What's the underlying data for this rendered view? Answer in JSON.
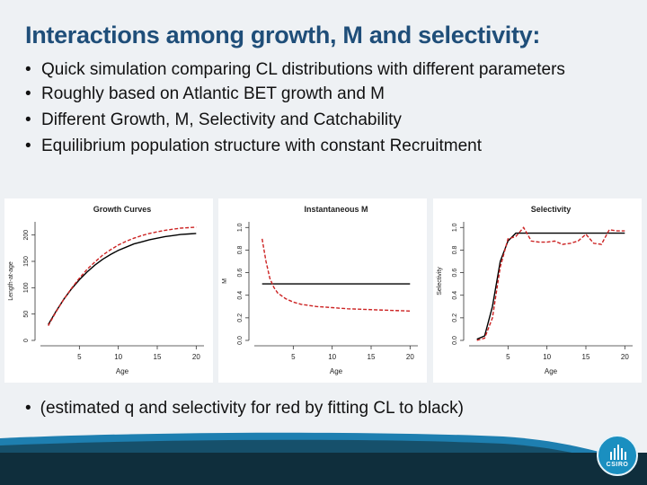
{
  "slide": {
    "title": "Interactions among growth, M and selectivity:",
    "bullets": [
      "Quick simulation comparing CL distributions with different parameters",
      "Roughly based on Atlantic BET growth and M",
      "Different Growth, M, Selectivity and Catchability",
      "Equilibrium population structure with constant Recruitment"
    ],
    "footer_bullet": "(estimated q and selectivity for red by fitting CL to black)",
    "logo_text": "CSIRO"
  },
  "colors": {
    "title": "#1f4e79",
    "black_series": "#000000",
    "red_series": "#cc2222",
    "logo": "#1a8fc0"
  },
  "chart_data": [
    {
      "type": "line",
      "title": "Growth Curves",
      "xlabel": "Age",
      "ylabel": "Length-at-age",
      "xlim": [
        0,
        21
      ],
      "ylim": [
        0,
        225
      ],
      "xticks": [
        "5",
        "10",
        "15",
        "20"
      ],
      "yticks": [
        "0",
        "50",
        "100",
        "150",
        "200"
      ],
      "series": [
        {
          "color": "#000000",
          "dash": false,
          "x": [
            1,
            2,
            3,
            4,
            5,
            6,
            7,
            8,
            9,
            10,
            11,
            12,
            13,
            14,
            15,
            16,
            17,
            18,
            19,
            20
          ],
          "y": [
            30,
            55,
            78,
            98,
            115,
            130,
            143,
            154,
            163,
            171,
            177,
            183,
            187,
            191,
            194,
            197,
            199,
            201,
            202,
            203
          ]
        },
        {
          "color": "#cc2222",
          "dash": true,
          "x": [
            1,
            2,
            3,
            4,
            5,
            6,
            7,
            8,
            9,
            10,
            11,
            12,
            13,
            14,
            15,
            16,
            17,
            18,
            19,
            20
          ],
          "y": [
            28,
            54,
            78,
            99,
            118,
            135,
            149,
            162,
            172,
            181,
            188,
            194,
            199,
            203,
            206,
            209,
            211,
            213,
            214,
            215
          ]
        }
      ]
    },
    {
      "type": "line",
      "title": "Instantaneous M",
      "xlabel": "Age",
      "ylabel": "M",
      "xlim": [
        0,
        21
      ],
      "ylim": [
        0,
        1.05
      ],
      "xticks": [
        "5",
        "10",
        "15",
        "20"
      ],
      "yticks": [
        "0.0",
        "0.2",
        "0.4",
        "0.6",
        "0.8",
        "1.0"
      ],
      "series": [
        {
          "color": "#000000",
          "dash": false,
          "x": [
            1,
            20
          ],
          "y": [
            0.5,
            0.5
          ]
        },
        {
          "color": "#cc2222",
          "dash": true,
          "x": [
            1,
            1.5,
            2,
            2.5,
            3,
            4,
            5,
            6,
            8,
            10,
            12,
            14,
            16,
            18,
            20
          ],
          "y": [
            0.9,
            0.7,
            0.55,
            0.47,
            0.42,
            0.37,
            0.34,
            0.32,
            0.3,
            0.29,
            0.28,
            0.275,
            0.27,
            0.265,
            0.26
          ]
        }
      ]
    },
    {
      "type": "line",
      "title": "Selectivity",
      "xlabel": "Age",
      "ylabel": "Selectivity",
      "xlim": [
        0,
        21
      ],
      "ylim": [
        0,
        1.05
      ],
      "xticks": [
        "5",
        "10",
        "15",
        "20"
      ],
      "yticks": [
        "0.0",
        "0.2",
        "0.4",
        "0.6",
        "0.8",
        "1.0"
      ],
      "series": [
        {
          "color": "#000000",
          "dash": false,
          "x": [
            1,
            2,
            3,
            4,
            5,
            6,
            7,
            20
          ],
          "y": [
            0.01,
            0.04,
            0.3,
            0.7,
            0.88,
            0.95,
            0.95,
            0.95
          ]
        },
        {
          "color": "#cc2222",
          "dash": true,
          "x": [
            1,
            2,
            3,
            4,
            5,
            6,
            7,
            8,
            9,
            10,
            11,
            12,
            13,
            14,
            15,
            16,
            17,
            18,
            19,
            20
          ],
          "y": [
            0.0,
            0.02,
            0.2,
            0.65,
            0.9,
            0.92,
            1.0,
            0.88,
            0.87,
            0.87,
            0.88,
            0.85,
            0.86,
            0.88,
            0.94,
            0.86,
            0.85,
            0.98,
            0.97,
            0.97
          ]
        }
      ]
    }
  ]
}
